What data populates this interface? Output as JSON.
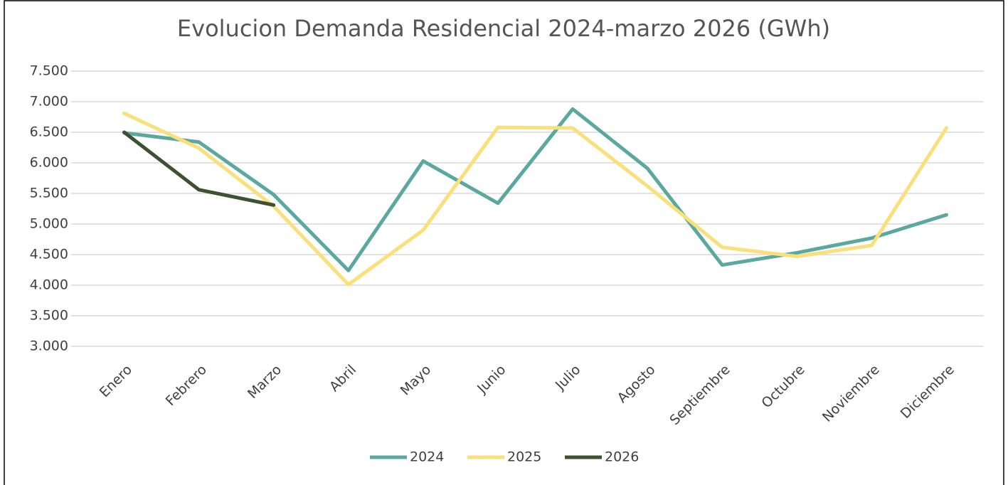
{
  "chart_data": {
    "type": "line",
    "title": "Evolucion Demanda Residencial 2024-marzo 2026 (GWh)",
    "categories": [
      "Enero",
      "Febrero",
      "Marzo",
      "Abril",
      "Mayo",
      "Junio",
      "Julio",
      "Agosto",
      "Septiembre",
      "Octubre",
      "Noviembre",
      "Diciembre"
    ],
    "series": [
      {
        "name": "2024",
        "color": "#5ba8a0",
        "values": [
          6490,
          6340,
          5480,
          4240,
          6030,
          5340,
          6880,
          5910,
          4330,
          4530,
          4770,
          5150
        ]
      },
      {
        "name": "2025",
        "color": "#f9e07a",
        "values": [
          6810,
          6240,
          5290,
          4010,
          4900,
          6580,
          6570,
          5620,
          4620,
          4470,
          4650,
          6570
        ]
      },
      {
        "name": "2026",
        "color": "#3d5233",
        "values": [
          6500,
          5560,
          5310,
          null,
          null,
          null,
          null,
          null,
          null,
          null,
          null,
          null
        ]
      }
    ],
    "ylim": [
      3000,
      7500
    ],
    "yticks": [
      {
        "value": 3000,
        "label": "3.000"
      },
      {
        "value": 3500,
        "label": "3.500"
      },
      {
        "value": 4000,
        "label": "4.000"
      },
      {
        "value": 4500,
        "label": "4.500"
      },
      {
        "value": 5000,
        "label": "5.000"
      },
      {
        "value": 5500,
        "label": "5.500"
      },
      {
        "value": 6000,
        "label": "6.000"
      },
      {
        "value": 6500,
        "label": "6.500"
      },
      {
        "value": 7000,
        "label": "7.000"
      },
      {
        "value": 7500,
        "label": "7.500"
      }
    ],
    "grid": true,
    "legend": "bottom"
  }
}
